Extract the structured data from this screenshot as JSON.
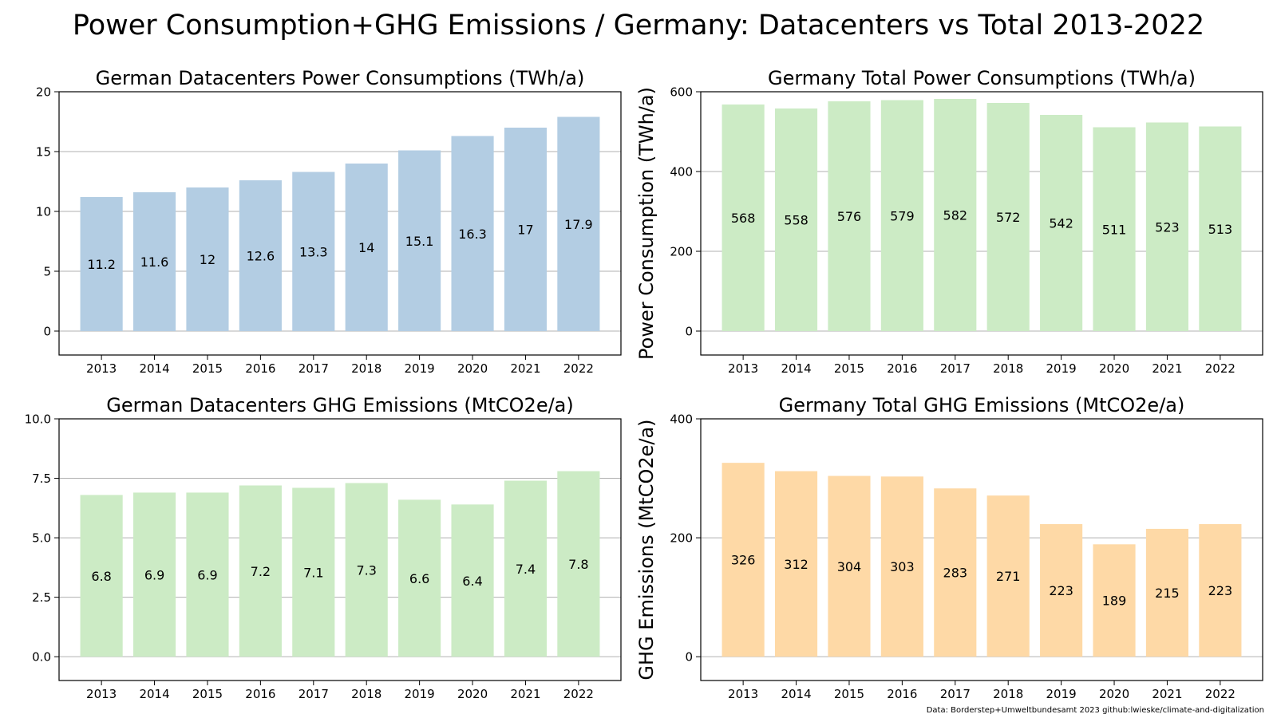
{
  "figure": {
    "title": "Power Consumption+GHG Emissions / Germany: Datacenters vs Total 2013-2022",
    "source_note": "Data: Borderstep+Umweltbundesamt 2023   github:lwieske/climate-and-digitalization"
  },
  "chart_data": [
    {
      "type": "bar",
      "title": "German Datacenters Power Consumptions (TWh/a)",
      "xlabel": "",
      "ylabel": "",
      "categories": [
        "2013",
        "2014",
        "2015",
        "2016",
        "2017",
        "2018",
        "2019",
        "2020",
        "2021",
        "2022"
      ],
      "values": [
        11.2,
        11.6,
        12,
        12.6,
        13.3,
        14,
        15.1,
        16.3,
        17,
        17.9
      ],
      "labels": [
        "11.2",
        "11.6",
        "12",
        "12.6",
        "13.3",
        "14",
        "15.1",
        "16.3",
        "17",
        "17.9"
      ],
      "ylim": [
        -2,
        20
      ],
      "yticks": [
        0,
        5,
        10,
        15,
        20
      ],
      "ytick_labels": [
        "0",
        "5",
        "10",
        "15",
        "20"
      ],
      "grid": "y",
      "color": "#b3cde3"
    },
    {
      "type": "bar",
      "title": "Germany Total Power Consumptions (TWh/a)",
      "xlabel": "",
      "ylabel": "Power Consumption (TWh/a)",
      "categories": [
        "2013",
        "2014",
        "2015",
        "2016",
        "2017",
        "2018",
        "2019",
        "2020",
        "2021",
        "2022"
      ],
      "values": [
        568,
        558,
        576,
        579,
        582,
        572,
        542,
        511,
        523,
        513
      ],
      "labels": [
        "568",
        "558",
        "576",
        "579",
        "582",
        "572",
        "542",
        "511",
        "523",
        "513"
      ],
      "ylim": [
        -60,
        600
      ],
      "yticks": [
        0,
        200,
        400,
        600
      ],
      "ytick_labels": [
        "0",
        "200",
        "400",
        "600"
      ],
      "grid": "y",
      "color": "#ccebc5"
    },
    {
      "type": "bar",
      "title": "German Datacenters GHG Emissions (MtCO2e/a)",
      "xlabel": "",
      "ylabel": "",
      "categories": [
        "2013",
        "2014",
        "2015",
        "2016",
        "2017",
        "2018",
        "2019",
        "2020",
        "2021",
        "2022"
      ],
      "values": [
        6.8,
        6.9,
        6.9,
        7.2,
        7.1,
        7.3,
        6.6,
        6.4,
        7.4,
        7.8
      ],
      "labels": [
        "6.8",
        "6.9",
        "6.9",
        "7.2",
        "7.1",
        "7.3",
        "6.6",
        "6.4",
        "7.4",
        "7.8"
      ],
      "ylim": [
        -1,
        10
      ],
      "yticks": [
        0,
        2.5,
        5,
        7.5,
        10
      ],
      "ytick_labels": [
        "0.0",
        "2.5",
        "5.0",
        "7.5",
        "10.0"
      ],
      "grid": "y",
      "color": "#ccebc5"
    },
    {
      "type": "bar",
      "title": "Germany Total GHG Emissions (MtCO2e/a)",
      "xlabel": "",
      "ylabel": "GHG Emissions (MtCO2e/a)",
      "categories": [
        "2013",
        "2014",
        "2015",
        "2016",
        "2017",
        "2018",
        "2019",
        "2020",
        "2021",
        "2022"
      ],
      "values": [
        326,
        312,
        304,
        303,
        283,
        271,
        223,
        189,
        215,
        223
      ],
      "labels": [
        "326",
        "312",
        "304",
        "303",
        "283",
        "271",
        "223",
        "189",
        "215",
        "223"
      ],
      "ylim": [
        -40,
        400
      ],
      "yticks": [
        0,
        200,
        400
      ],
      "ytick_labels": [
        "0",
        "200",
        "400"
      ],
      "grid": "y",
      "color": "#fed9a6"
    }
  ]
}
